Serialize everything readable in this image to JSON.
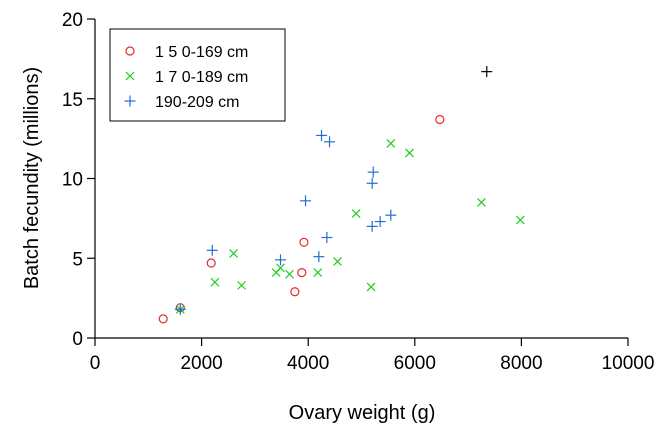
{
  "chart_data": {
    "type": "scatter",
    "title": "",
    "xlabel": "Ovary weight (g)",
    "ylabel": "Batch fecundity (millions)",
    "xlim": [
      0,
      10000
    ],
    "ylim": [
      0,
      20
    ],
    "x_ticks": [
      0,
      2000,
      4000,
      6000,
      8000,
      10000
    ],
    "x_tick_labels": [
      "0",
      "2000",
      "4000",
      "6000",
      "8000",
      "10000"
    ],
    "y_ticks": [
      0,
      5,
      10,
      15,
      20
    ],
    "y_tick_labels": [
      "0",
      "5",
      "10",
      "15",
      "20"
    ],
    "grid": false,
    "legend_position": "top-left",
    "series": [
      {
        "name": "1 5 0-169 cm",
        "marker": "circle",
        "color": "#e8282e",
        "points": [
          [
            1280,
            1.2
          ],
          [
            1600,
            1.9
          ],
          [
            2180,
            4.7
          ],
          [
            3750,
            2.9
          ],
          [
            3880,
            4.1
          ],
          [
            3920,
            6.0
          ],
          [
            6470,
            13.7
          ]
        ]
      },
      {
        "name": "1 7 0-189 cm",
        "marker": "x",
        "color": "#22cc22",
        "points": [
          [
            1600,
            1.8
          ],
          [
            2250,
            3.5
          ],
          [
            2600,
            5.3
          ],
          [
            2750,
            3.3
          ],
          [
            3400,
            4.1
          ],
          [
            3480,
            4.4
          ],
          [
            3650,
            4.0
          ],
          [
            4180,
            4.1
          ],
          [
            4550,
            4.8
          ],
          [
            4900,
            7.8
          ],
          [
            5180,
            3.2
          ],
          [
            5550,
            12.2
          ],
          [
            5900,
            11.6
          ],
          [
            7250,
            8.5
          ],
          [
            7980,
            7.4
          ]
        ]
      },
      {
        "name": "190-209 cm",
        "marker": "plus",
        "color": "#1f6fd6",
        "points": [
          [
            1600,
            1.8
          ],
          [
            2200,
            5.5
          ],
          [
            3480,
            4.9
          ],
          [
            3950,
            8.6
          ],
          [
            4200,
            5.1
          ],
          [
            4250,
            12.7
          ],
          [
            4350,
            6.3
          ],
          [
            4400,
            12.3
          ],
          [
            5200,
            7.0
          ],
          [
            5200,
            9.7
          ],
          [
            5220,
            10.4
          ],
          [
            5350,
            7.3
          ],
          [
            5550,
            7.7
          ]
        ]
      },
      {
        "name": "",
        "marker": "plus",
        "color": "#000000",
        "points": [
          [
            7350,
            16.7
          ]
        ]
      }
    ]
  }
}
